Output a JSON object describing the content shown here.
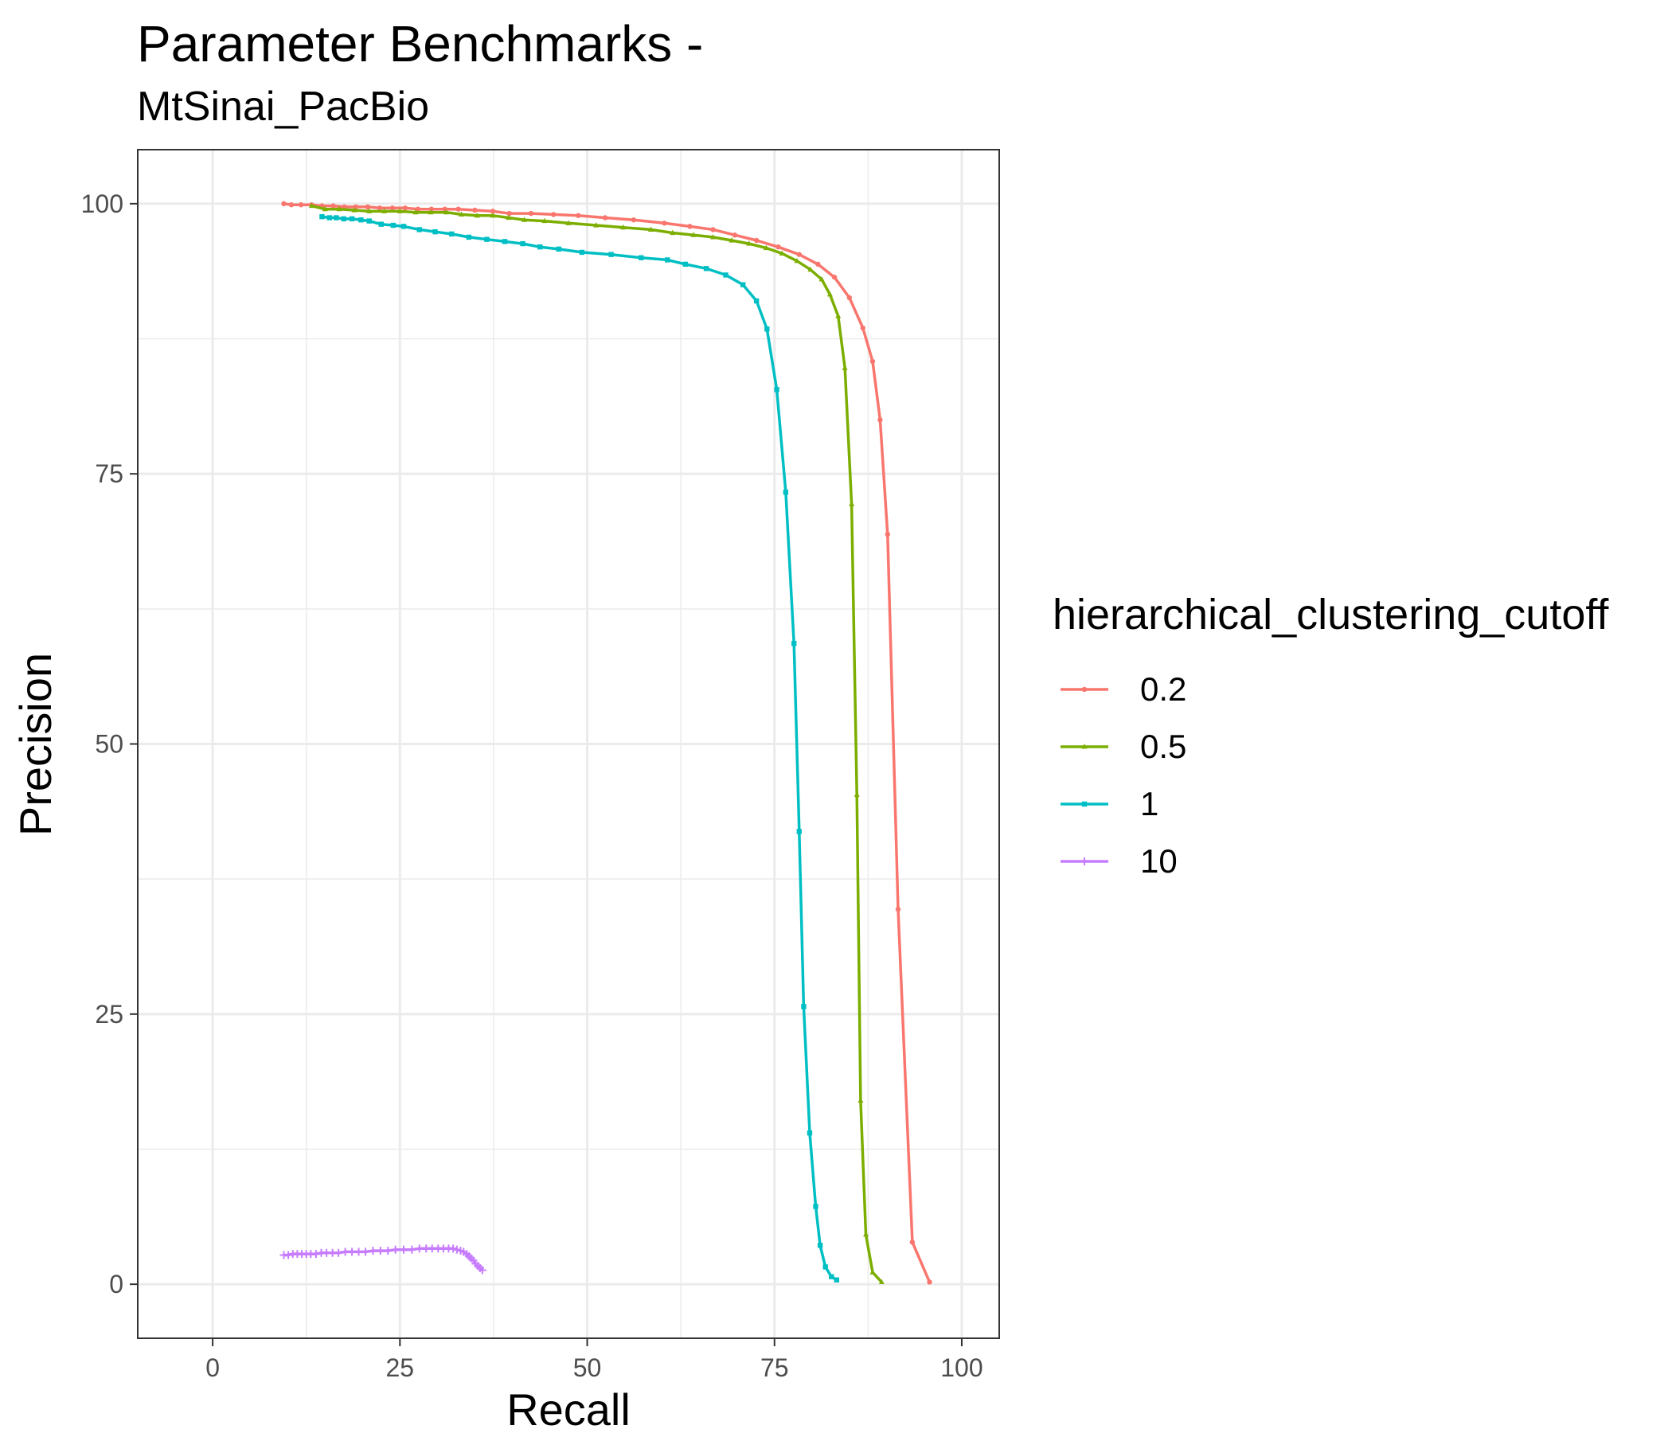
{
  "chart_data": {
    "type": "line",
    "title": "Parameter Benchmarks -",
    "subtitle": "MtSinai_PacBio",
    "xlabel": "Recall",
    "ylabel": "Precision",
    "xlim": [
      -10,
      105
    ],
    "ylim": [
      -5,
      105
    ],
    "x_ticks": [
      0,
      25,
      50,
      75,
      100
    ],
    "y_ticks": [
      0,
      25,
      50,
      75,
      100
    ],
    "grid": true,
    "legend": {
      "title": "hierarchical_clustering_cutoff",
      "position": "right"
    },
    "series": [
      {
        "name": "0.2",
        "color": "#F8766D",
        "marker": "circle",
        "points": [
          [
            9.5,
            100
          ],
          [
            10.5,
            99.9
          ],
          [
            11.8,
            99.9
          ],
          [
            13.2,
            99.9
          ],
          [
            14.6,
            99.8
          ],
          [
            16.1,
            99.8
          ],
          [
            17.6,
            99.7
          ],
          [
            19.1,
            99.7
          ],
          [
            20.7,
            99.7
          ],
          [
            22.3,
            99.6
          ],
          [
            24.0,
            99.6
          ],
          [
            25.7,
            99.6
          ],
          [
            27.4,
            99.5
          ],
          [
            29.2,
            99.5
          ],
          [
            31.0,
            99.5
          ],
          [
            32.8,
            99.5
          ],
          [
            35.0,
            99.4
          ],
          [
            37.4,
            99.3
          ],
          [
            39.6,
            99.1
          ],
          [
            42.5,
            99.1
          ],
          [
            45.5,
            99.0
          ],
          [
            48.8,
            98.9
          ],
          [
            52.4,
            98.7
          ],
          [
            56.2,
            98.5
          ],
          [
            60.3,
            98.2
          ],
          [
            63.7,
            97.9
          ],
          [
            66.8,
            97.6
          ],
          [
            69.7,
            97.1
          ],
          [
            72.6,
            96.6
          ],
          [
            75.5,
            96.0
          ],
          [
            78.3,
            95.3
          ],
          [
            80.8,
            94.4
          ],
          [
            83.0,
            93.2
          ],
          [
            85.0,
            91.3
          ],
          [
            86.8,
            88.5
          ],
          [
            88.1,
            85.4
          ],
          [
            89.1,
            80.0
          ],
          [
            90.1,
            69.4
          ],
          [
            91.5,
            34.7
          ],
          [
            93.4,
            3.9
          ],
          [
            95.7,
            0.2
          ]
        ]
      },
      {
        "name": "0.5",
        "color": "#7CAE00",
        "marker": "triangle",
        "points": [
          [
            13.2,
            99.8
          ],
          [
            15.0,
            99.5
          ],
          [
            16.9,
            99.5
          ],
          [
            18.9,
            99.4
          ],
          [
            20.9,
            99.3
          ],
          [
            22.9,
            99.3
          ],
          [
            25.0,
            99.3
          ],
          [
            27.1,
            99.2
          ],
          [
            29.1,
            99.2
          ],
          [
            31.2,
            99.2
          ],
          [
            33.2,
            99.0
          ],
          [
            35.3,
            98.9
          ],
          [
            37.4,
            98.9
          ],
          [
            39.5,
            98.7
          ],
          [
            41.6,
            98.5
          ],
          [
            44.3,
            98.4
          ],
          [
            47.5,
            98.2
          ],
          [
            51.2,
            98.0
          ],
          [
            54.8,
            97.8
          ],
          [
            58.5,
            97.6
          ],
          [
            61.4,
            97.3
          ],
          [
            64.2,
            97.1
          ],
          [
            66.8,
            96.9
          ],
          [
            69.3,
            96.6
          ],
          [
            71.6,
            96.3
          ],
          [
            73.9,
            95.9
          ],
          [
            76.0,
            95.4
          ],
          [
            78.0,
            94.7
          ],
          [
            79.8,
            93.9
          ],
          [
            81.3,
            93.0
          ],
          [
            82.4,
            91.6
          ],
          [
            83.5,
            89.6
          ],
          [
            84.4,
            84.8
          ],
          [
            85.3,
            72.2
          ],
          [
            86.0,
            45.3
          ],
          [
            86.5,
            17.0
          ],
          [
            87.2,
            4.6
          ],
          [
            88.1,
            1.1
          ],
          [
            89.3,
            0.2
          ]
        ]
      },
      {
        "name": "1",
        "color": "#00BFC4",
        "marker": "square",
        "points": [
          [
            14.6,
            98.8
          ],
          [
            15.6,
            98.7
          ],
          [
            16.5,
            98.7
          ],
          [
            17.5,
            98.6
          ],
          [
            18.6,
            98.6
          ],
          [
            19.8,
            98.5
          ],
          [
            20.9,
            98.4
          ],
          [
            22.5,
            98.1
          ],
          [
            24.1,
            98.0
          ],
          [
            25.5,
            97.9
          ],
          [
            27.6,
            97.6
          ],
          [
            29.7,
            97.4
          ],
          [
            31.9,
            97.2
          ],
          [
            34.2,
            96.9
          ],
          [
            36.6,
            96.7
          ],
          [
            39.0,
            96.5
          ],
          [
            41.4,
            96.3
          ],
          [
            43.7,
            96.0
          ],
          [
            46.2,
            95.8
          ],
          [
            49.3,
            95.5
          ],
          [
            53.2,
            95.3
          ],
          [
            57.2,
            95.0
          ],
          [
            60.7,
            94.8
          ],
          [
            63.1,
            94.4
          ],
          [
            65.9,
            94.0
          ],
          [
            68.5,
            93.4
          ],
          [
            70.8,
            92.5
          ],
          [
            72.6,
            91.0
          ],
          [
            74.0,
            88.4
          ],
          [
            75.3,
            82.8
          ],
          [
            76.5,
            73.3
          ],
          [
            77.6,
            59.3
          ],
          [
            78.3,
            41.9
          ],
          [
            78.9,
            25.7
          ],
          [
            79.7,
            14.0
          ],
          [
            80.5,
            7.2
          ],
          [
            81.1,
            3.6
          ],
          [
            81.8,
            1.6
          ],
          [
            82.6,
            0.7
          ],
          [
            83.3,
            0.4
          ]
        ]
      },
      {
        "name": "10",
        "color": "#C77CFF",
        "marker": "plus",
        "points": [
          [
            9.5,
            2.7
          ],
          [
            10.1,
            2.7
          ],
          [
            10.7,
            2.8
          ],
          [
            11.3,
            2.8
          ],
          [
            11.9,
            2.8
          ],
          [
            12.5,
            2.8
          ],
          [
            13.1,
            2.8
          ],
          [
            13.8,
            2.8
          ],
          [
            14.5,
            2.9
          ],
          [
            15.2,
            2.9
          ],
          [
            16.0,
            2.9
          ],
          [
            16.8,
            2.9
          ],
          [
            17.7,
            3.0
          ],
          [
            18.6,
            3.0
          ],
          [
            19.5,
            3.0
          ],
          [
            20.4,
            3.0
          ],
          [
            21.4,
            3.1
          ],
          [
            22.4,
            3.1
          ],
          [
            23.4,
            3.1
          ],
          [
            24.4,
            3.2
          ],
          [
            25.5,
            3.2
          ],
          [
            26.6,
            3.2
          ],
          [
            27.6,
            3.3
          ],
          [
            28.5,
            3.3
          ],
          [
            29.3,
            3.3
          ],
          [
            30.1,
            3.3
          ],
          [
            30.8,
            3.3
          ],
          [
            31.5,
            3.3
          ],
          [
            32.1,
            3.3
          ],
          [
            32.6,
            3.2
          ],
          [
            33.1,
            3.1
          ],
          [
            33.5,
            3.0
          ],
          [
            33.9,
            2.8
          ],
          [
            34.2,
            2.6
          ],
          [
            34.5,
            2.4
          ],
          [
            34.8,
            2.2
          ],
          [
            35.1,
            1.9
          ],
          [
            35.4,
            1.7
          ],
          [
            35.7,
            1.5
          ],
          [
            36.0,
            1.3
          ]
        ]
      }
    ]
  }
}
